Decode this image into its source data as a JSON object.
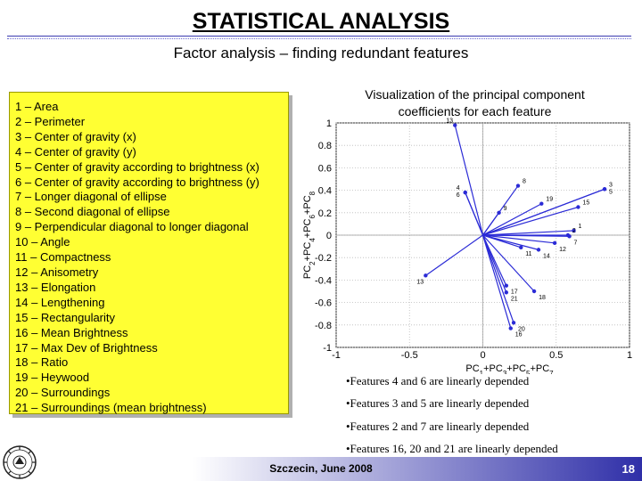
{
  "slide": {
    "title": "STATISTICAL ANALYSIS",
    "subtitle": "Factor analysis – finding redundant features",
    "page_number": "18",
    "footer": "Szczecin, June 2008"
  },
  "features": [
    "1 – Area",
    "2 – Perimeter",
    "3 – Center of gravity (x)",
    "4 – Center of gravity (y)",
    "5 – Center of gravity according to brightness (x)",
    "6 – Center of gravity according to brightness (y)",
    "7 – Longer diagonal of ellipse",
    "8 – Second diagonal of ellipse",
    "9 – Perpendicular diagonal to longer diagonal",
    "10 – Angle",
    "11 – Compactness",
    "12 – Anisometry",
    "13 – Elongation",
    "14 – Lengthening",
    "15 – Rectangularity",
    "16 – Mean Brightness",
    "17 – Max Dev of Brightness",
    "18 – Ratio",
    "19 – Heywood",
    "20 – Surroundings",
    "21 – Surroundings (mean brightness)"
  ],
  "visualization_title": "Visualization of the principal component coefficients for each feature",
  "notes": [
    "•Features 4 and 6 are linearly depended",
    "•Features 3 and 5 are linearly depended",
    "•Features 2 and 7 are linearly depended",
    "•Features 16, 20 and 21 are linearly depended"
  ],
  "chart_data": {
    "type": "scatter",
    "style": "biplot-vectors",
    "xlabel": "PC1+PC3+PC5+PC7",
    "ylabel": "PC2+PC4+PC6+PC8",
    "xlim": [
      -1,
      1
    ],
    "ylim": [
      -1,
      1
    ],
    "xticks": [
      "-1",
      "-0.5",
      "0",
      "0.5",
      "1"
    ],
    "yticks": [
      "1",
      "0.8",
      "0.6",
      "0.4",
      "0.2",
      "0",
      "-0.2",
      "-0.4",
      "-0.6",
      "-0.8",
      "-1"
    ],
    "grid": true,
    "points": [
      {
        "label": "13",
        "x": -0.19,
        "y": 0.98
      },
      {
        "label": "8",
        "x": 0.24,
        "y": 0.44
      },
      {
        "label": "3",
        "x": 0.83,
        "y": 0.41
      },
      {
        "label": "5",
        "x": 0.83,
        "y": 0.41
      },
      {
        "label": "4",
        "x": -0.12,
        "y": 0.38
      },
      {
        "label": "6",
        "x": -0.12,
        "y": 0.38
      },
      {
        "label": "19",
        "x": 0.4,
        "y": 0.28
      },
      {
        "label": "15",
        "x": 0.65,
        "y": 0.25
      },
      {
        "label": "9",
        "x": 0.11,
        "y": 0.2
      },
      {
        "label": "1",
        "x": 0.62,
        "y": 0.04
      },
      {
        "label": "2",
        "x": 0.58,
        "y": 0.0
      },
      {
        "label": "7",
        "x": 0.59,
        "y": -0.01
      },
      {
        "label": "12",
        "x": 0.49,
        "y": -0.07
      },
      {
        "label": "14",
        "x": 0.38,
        "y": -0.13
      },
      {
        "label": "11",
        "x": 0.26,
        "y": -0.11
      },
      {
        "label": "13",
        "x": -0.39,
        "y": -0.36
      },
      {
        "label": "17",
        "x": 0.16,
        "y": -0.45
      },
      {
        "label": "21",
        "x": 0.16,
        "y": -0.51
      },
      {
        "label": "18",
        "x": 0.35,
        "y": -0.5
      },
      {
        "label": "20",
        "x": 0.21,
        "y": -0.78
      },
      {
        "label": "16",
        "x": 0.19,
        "y": -0.83
      }
    ]
  }
}
